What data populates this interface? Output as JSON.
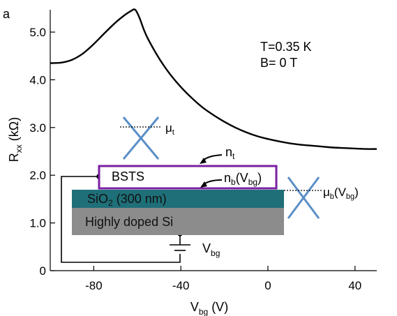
{
  "panel_label": "a",
  "conditions": {
    "temperature": "T=0.35 K",
    "field": "B= 0 T"
  },
  "device": {
    "bsts_label": "BSTS",
    "sio2_label_pre": "SiO",
    "sio2_label_sub": "2",
    "sio2_label_post": " (300 nm)",
    "si_label": "Highly doped Si",
    "vbg_label": "V",
    "vbg_sub": "bg",
    "nt_label": "n",
    "nt_sub": "t",
    "nb_label_pre": "n",
    "nb_sub": "b",
    "nb_label_post": "(V",
    "nb_vsub": "bg",
    "nb_close": ")",
    "mu_t_label": "μ",
    "mu_t_sub": "t",
    "mu_b_label_pre": "μ",
    "mu_b_sub": "b",
    "mu_b_label_post": "(V",
    "mu_b_vsub": "bg",
    "mu_b_close": ")",
    "colors": {
      "bsts_border": "#7a1fa2",
      "sio2": "#1f6f78",
      "si": "#8c8c8c",
      "cross": "#5b8fc7"
    }
  },
  "chart_data": {
    "type": "line",
    "xlabel_main": "V",
    "xlabel_sub": "bg",
    "xlabel_unit": " (V)",
    "ylabel_main": "R",
    "ylabel_sub": "xx",
    "ylabel_unit": " (kΩ)",
    "xlim": [
      -100,
      50
    ],
    "ylim": [
      0,
      5.5
    ],
    "x_ticks": [
      -80,
      -40,
      0,
      40
    ],
    "x_tick_labels": [
      "-80",
      "-40",
      "0",
      "40"
    ],
    "y_ticks": [
      0,
      1,
      2,
      3,
      4,
      5
    ],
    "y_tick_labels": [
      "0",
      "1.0",
      "2.0",
      "3.0",
      "4.0",
      "5.0"
    ],
    "series": [
      {
        "x": [
          -100,
          -95,
          -90,
          -85,
          -80,
          -75,
          -70,
          -66,
          -63,
          -61,
          -59,
          -57,
          -55,
          -50,
          -45,
          -40,
          -35,
          -30,
          -25,
          -20,
          -15,
          -10,
          -5,
          0,
          5,
          10,
          15,
          20,
          25,
          30,
          35,
          40,
          45,
          50
        ],
        "y": [
          4.35,
          4.36,
          4.42,
          4.55,
          4.75,
          4.98,
          5.2,
          5.35,
          5.44,
          5.47,
          5.3,
          5.05,
          4.85,
          4.45,
          4.12,
          3.85,
          3.62,
          3.42,
          3.26,
          3.12,
          3.0,
          2.9,
          2.82,
          2.76,
          2.71,
          2.67,
          2.64,
          2.62,
          2.6,
          2.58,
          2.57,
          2.56,
          2.55,
          2.55
        ]
      }
    ],
    "grid": false
  }
}
